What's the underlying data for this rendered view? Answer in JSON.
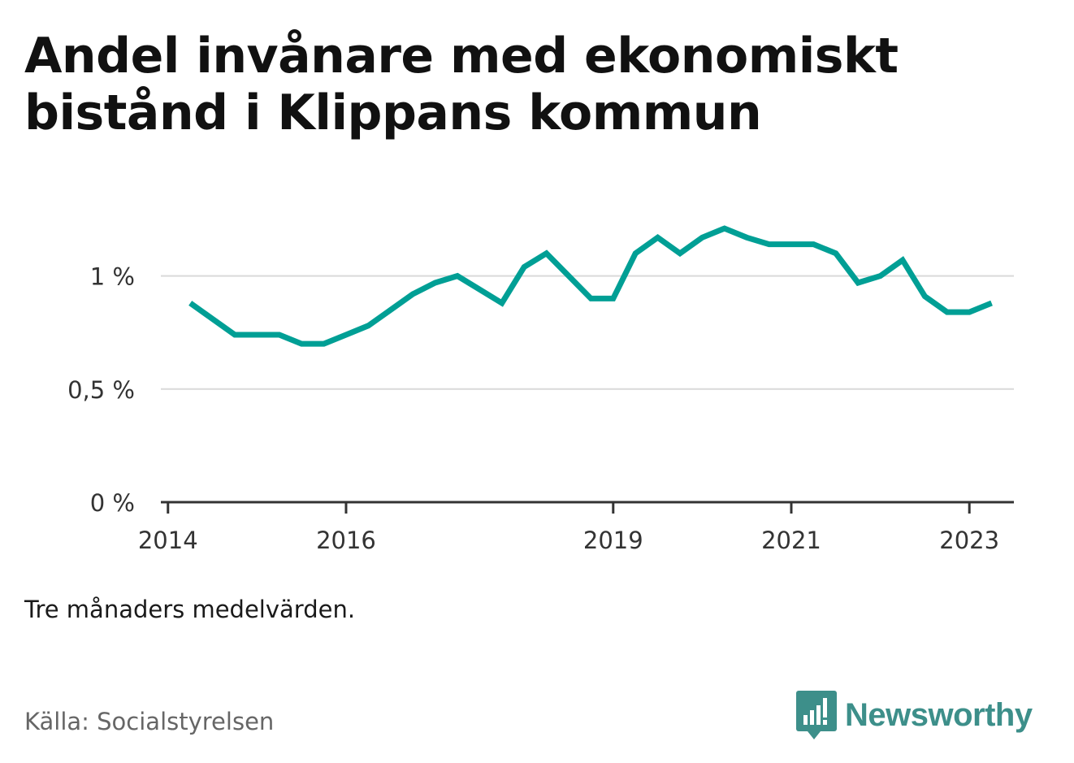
{
  "title": "Andel invånare med ekonomiskt bistånd i Klippans kommun",
  "note": "Tre månaders medelvärden.",
  "source": "Källa: Socialstyrelsen",
  "brand": {
    "name": "Newsworthy",
    "color": "#3d8f8a",
    "icon": "newsworthy-logo-icon"
  },
  "colors": {
    "line": "#009f95",
    "grid": "#d9d9d9",
    "axis": "#333333"
  },
  "chart_data": {
    "type": "line",
    "title": "Andel invånare med ekonomiskt bistånd i Klippans kommun",
    "xlabel": "",
    "ylabel": "",
    "xlim": [
      2013.92,
      2023.5
    ],
    "ylim": [
      0,
      1.25
    ],
    "y_ticks": [
      {
        "value": 0,
        "label": "0 %"
      },
      {
        "value": 0.5,
        "label": "0,5 %"
      },
      {
        "value": 1,
        "label": "1 %"
      }
    ],
    "x_ticks": [
      {
        "value": 2014,
        "label": "2014"
      },
      {
        "value": 2016,
        "label": "2016"
      },
      {
        "value": 2019,
        "label": "2019"
      },
      {
        "value": 2021,
        "label": "2021"
      },
      {
        "value": 2023,
        "label": "2023"
      }
    ],
    "grid": true,
    "series": [
      {
        "x": [
          2014.25,
          2014.5,
          2014.75,
          2015.0,
          2015.25,
          2015.5,
          2015.75,
          2016.0,
          2016.25,
          2016.5,
          2016.75,
          2017.0,
          2017.25,
          2017.5,
          2017.75,
          2018.0,
          2018.25,
          2018.5,
          2018.75,
          2019.0,
          2019.25,
          2019.5,
          2019.75,
          2020.0,
          2020.25,
          2020.5,
          2020.75,
          2021.0,
          2021.25,
          2021.5,
          2021.75,
          2022.0,
          2022.25,
          2022.5,
          2022.75,
          2023.0,
          2023.25
        ],
        "values": [
          0.88,
          0.81,
          0.74,
          0.74,
          0.74,
          0.7,
          0.7,
          0.74,
          0.78,
          0.85,
          0.92,
          0.97,
          1.0,
          0.94,
          0.88,
          1.04,
          1.1,
          1.0,
          0.9,
          0.9,
          1.1,
          1.17,
          1.1,
          1.17,
          1.21,
          1.17,
          1.14,
          1.14,
          1.14,
          1.1,
          0.97,
          1.0,
          1.07,
          0.91,
          0.84,
          0.84,
          0.88
        ]
      }
    ]
  }
}
